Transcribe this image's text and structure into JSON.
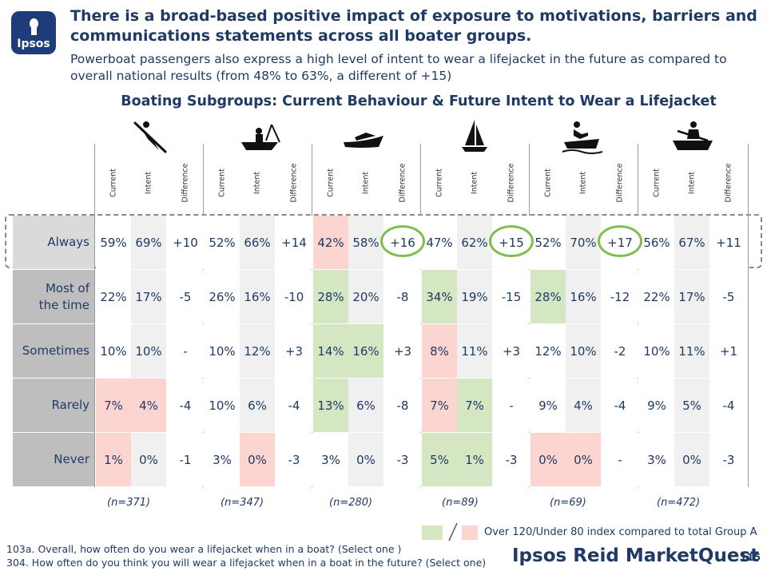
{
  "logo": {
    "text": "Ipsos"
  },
  "header": {
    "title": "There is a broad-based positive impact of exposure to motivations, barriers and communications statements across all boater groups.",
    "subtitle": "Powerboat passengers also express a high level of intent to wear a lifejacket in the future as compared to overall national results (from 48% to 63%, a different of +15)"
  },
  "chart_data": {
    "type": "table",
    "title": "Boating Subgroups: Current Behaviour & Future Intent to Wear a Lifejacket",
    "column_headers": [
      "Current",
      "Intent",
      "Difference"
    ],
    "groups": [
      {
        "icon": "canoe-kayak-icon",
        "n": "(n=371)"
      },
      {
        "icon": "fishing-boat-icon",
        "n": "(n=347)"
      },
      {
        "icon": "powerboat-icon",
        "n": "(n=280)"
      },
      {
        "icon": "sailboat-icon",
        "n": "(n=89)"
      },
      {
        "icon": "personal-watercraft-icon",
        "n": "(n=69)"
      },
      {
        "icon": "rowboat-icon",
        "n": "(n=472)"
      }
    ],
    "rows": [
      {
        "label": "Always",
        "values": [
          "59%",
          "69%",
          "+10",
          "52%",
          "66%",
          "+14",
          "42%",
          "58%",
          "+16",
          "47%",
          "62%",
          "+15",
          "52%",
          "70%",
          "+17",
          "56%",
          "67%",
          "+11"
        ],
        "shading": [
          "w",
          "l",
          "w",
          "w",
          "l",
          "w",
          "p",
          "l",
          "w",
          "w",
          "l",
          "w",
          "w",
          "l",
          "w",
          "w",
          "l",
          "w"
        ]
      },
      {
        "label": "Most of the time",
        "values": [
          "22%",
          "17%",
          "-5",
          "26%",
          "16%",
          "-10",
          "28%",
          "20%",
          "-8",
          "34%",
          "19%",
          "-15",
          "28%",
          "16%",
          "-12",
          "22%",
          "17%",
          "-5"
        ],
        "shading": [
          "w",
          "l",
          "w",
          "w",
          "l",
          "w",
          "g",
          "l",
          "w",
          "g",
          "l",
          "w",
          "g",
          "l",
          "w",
          "w",
          "l",
          "w"
        ]
      },
      {
        "label": "Sometimes",
        "values": [
          "10%",
          "10%",
          "-",
          "10%",
          "12%",
          "+3",
          "14%",
          "16%",
          "+3",
          "8%",
          "11%",
          "+3",
          "12%",
          "10%",
          "-2",
          "10%",
          "11%",
          "+1"
        ],
        "shading": [
          "w",
          "l",
          "w",
          "w",
          "l",
          "w",
          "g",
          "g",
          "w",
          "p",
          "l",
          "w",
          "w",
          "l",
          "w",
          "w",
          "l",
          "w"
        ]
      },
      {
        "label": "Rarely",
        "values": [
          "7%",
          "4%",
          "-4",
          "10%",
          "6%",
          "-4",
          "13%",
          "6%",
          "-8",
          "7%",
          "7%",
          "-",
          "9%",
          "4%",
          "-4",
          "9%",
          "5%",
          "-4"
        ],
        "shading": [
          "p",
          "p",
          "w",
          "w",
          "l",
          "w",
          "g",
          "l",
          "w",
          "p",
          "g",
          "w",
          "w",
          "l",
          "w",
          "w",
          "l",
          "w"
        ]
      },
      {
        "label": "Never",
        "values": [
          "1%",
          "0%",
          "-1",
          "3%",
          "0%",
          "-3",
          "3%",
          "0%",
          "-3",
          "5%",
          "1%",
          "-3",
          "0%",
          "0%",
          "-",
          "3%",
          "0%",
          "-3"
        ],
        "shading": [
          "p",
          "l",
          "w",
          "w",
          "p",
          "w",
          "w",
          "l",
          "w",
          "g",
          "g",
          "w",
          "p",
          "p",
          "w",
          "w",
          "l",
          "w"
        ]
      }
    ],
    "highlighted": [
      "+16",
      "+15",
      "+17"
    ]
  },
  "legend": {
    "text": "Over 120/Under 80 index compared to total Group A",
    "green": "#d5e6c3",
    "pink": "#fcd5d0"
  },
  "footnotes": {
    "q1": "103a. Overall, how often do you wear a lifejacket when in a boat? (Select one )",
    "q2": "304. How often do you think you will wear a lifejacket when in a boat in the future? (Select one)"
  },
  "brand": "Ipsos Reid MarketQuest",
  "page_number": "115",
  "colors": {
    "title": "#1f3a64",
    "logo_bg": "#1d3c78",
    "circle": "#80bd4f"
  }
}
